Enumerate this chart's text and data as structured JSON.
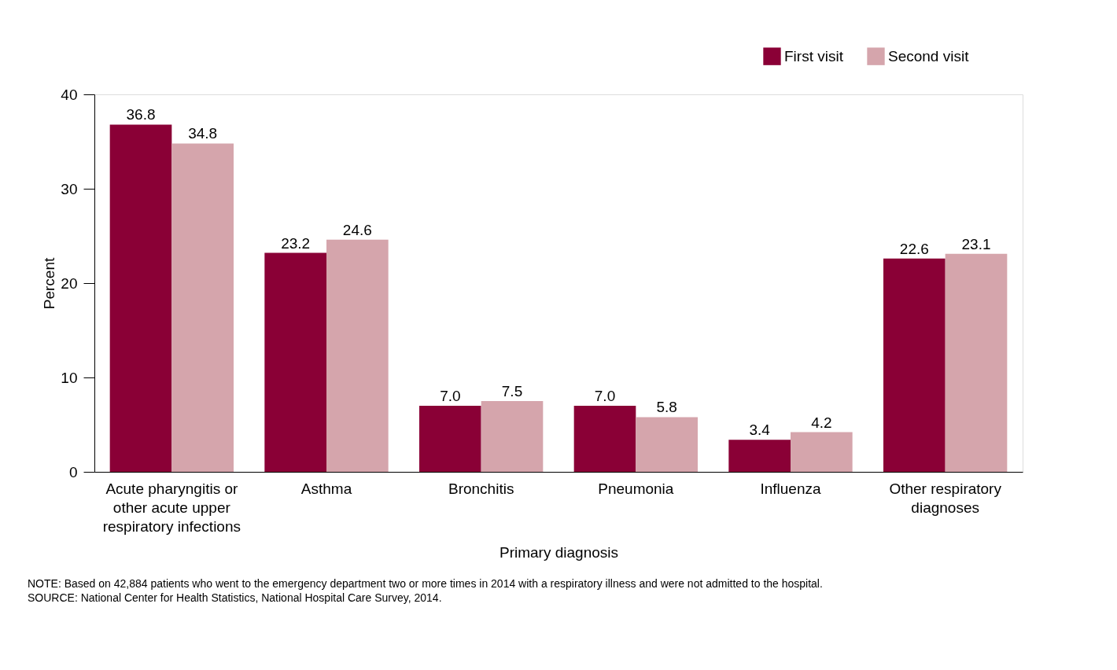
{
  "chart_data": {
    "type": "bar",
    "xlabel": "Primary diagnosis",
    "ylabel": "Percent",
    "categories": [
      "Acute pharyngitis or other acute upper respiratory infections",
      "Asthma",
      "Bronchitis",
      "Pneumonia",
      "Influenza",
      "Other respiratory diagnoses"
    ],
    "series": [
      {
        "name": "First visit",
        "color": "#8a0036",
        "values": [
          36.8,
          23.2,
          7.0,
          7.0,
          3.4,
          22.6
        ],
        "value_labels": [
          "36.8",
          "23.2",
          "7.0",
          "7.0",
          "3.4",
          "22.6"
        ]
      },
      {
        "name": "Second visit",
        "color": "#d5a5ac",
        "values": [
          34.8,
          24.6,
          7.5,
          5.8,
          4.2,
          23.1
        ],
        "value_labels": [
          "34.8",
          "24.6",
          "7.5",
          "5.8",
          "4.2",
          "23.1"
        ]
      }
    ],
    "ylim": [
      0,
      40
    ],
    "yticks": [
      0,
      10,
      20,
      30,
      40
    ],
    "grid": false,
    "legend": "top right",
    "annotations": [
      "NOTE: Based on 42,884 patients who went to the emergency department two or more times in 2014 with a respiratory illness and were not admitted to the hospital.",
      "SOURCE: National Center for Health Statistics, National Hospital Care Survey, 2014."
    ]
  }
}
